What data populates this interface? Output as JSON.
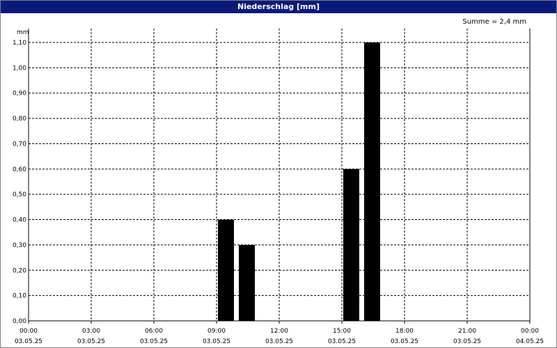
{
  "window": {
    "title": "Niederschlag [mm]"
  },
  "summary": "Summe = 2,4 mm",
  "colors": {
    "titlebar": "#0a1a7a",
    "bars": "#000000",
    "grid": "#000000"
  },
  "chart_data": {
    "type": "bar",
    "title": "Niederschlag [mm]",
    "ylabel": "mm",
    "xlabel": "",
    "ylim": [
      0,
      1.1
    ],
    "yticks": [
      "0,00",
      "0,10",
      "0,20",
      "0,30",
      "0,40",
      "0,50",
      "0,60",
      "0,70",
      "0,80",
      "0,90",
      "1,00",
      "1,10"
    ],
    "xlim_hours": [
      0,
      24
    ],
    "xticks": [
      {
        "time": "00:00",
        "date": "03.05.25"
      },
      {
        "time": "03:00",
        "date": "03.05.25"
      },
      {
        "time": "06:00",
        "date": "03.05.25"
      },
      {
        "time": "09:00",
        "date": "03.05.25"
      },
      {
        "time": "12:00",
        "date": "03.05.25"
      },
      {
        "time": "15:00",
        "date": "03.05.25"
      },
      {
        "time": "18:00",
        "date": "03.05.25"
      },
      {
        "time": "21:00",
        "date": "03.05.25"
      },
      {
        "time": "00:00",
        "date": "04.05.25"
      }
    ],
    "bars": [
      {
        "time": "09:00",
        "value": 0.4
      },
      {
        "time": "10:00",
        "value": 0.3
      },
      {
        "time": "15:00",
        "value": 0.6
      },
      {
        "time": "16:00",
        "value": 1.1
      }
    ],
    "grid": true
  }
}
